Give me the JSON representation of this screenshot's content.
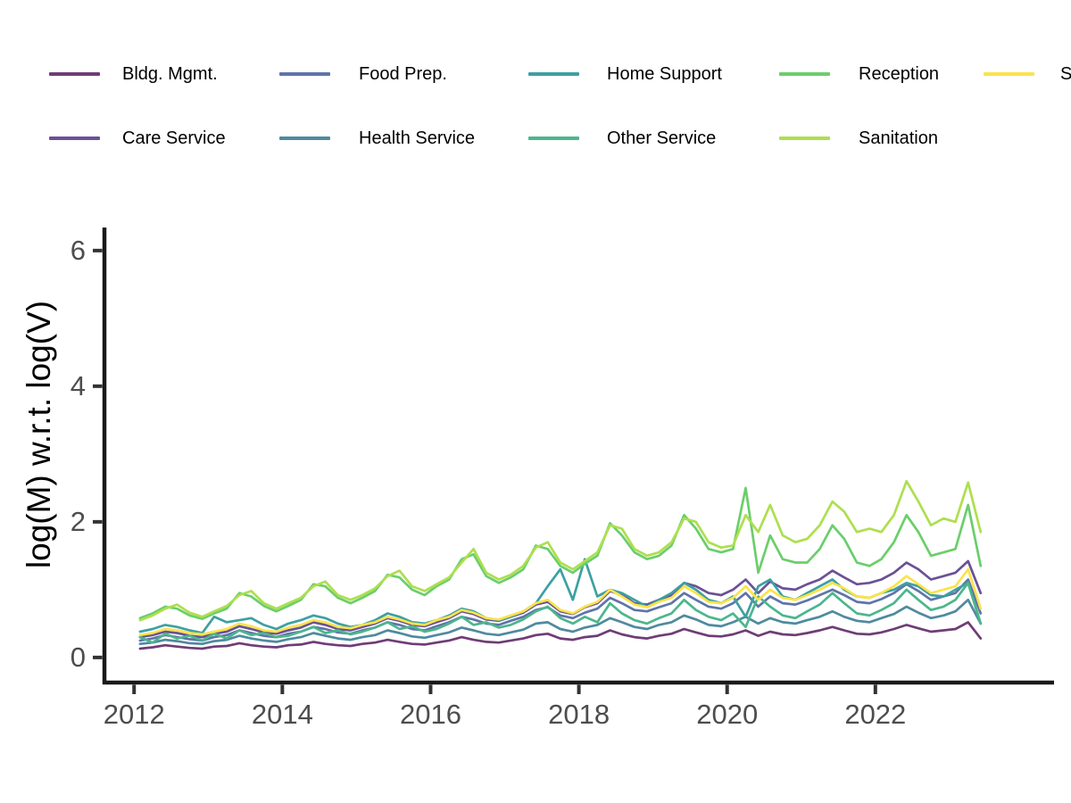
{
  "figure": {
    "background": "#ffffff"
  },
  "legend": {
    "items": [
      {
        "label": "Bldg. Mgmt.",
        "color": "#6f3c76"
      },
      {
        "label": "Care Service",
        "color": "#6a5196"
      },
      {
        "label": "Food Prep.",
        "color": "#5f74a9"
      },
      {
        "label": "Health Service",
        "color": "#4f8a9f"
      },
      {
        "label": "Home Support",
        "color": "#3da0a2"
      },
      {
        "label": "Other Service",
        "color": "#4cb68c"
      },
      {
        "label": "Reception",
        "color": "#6bce6b"
      },
      {
        "label": "Sanitation",
        "color": "#addf4f"
      },
      {
        "label": "S",
        "color": "#fbe34b"
      }
    ]
  },
  "chart_data": {
    "type": "line",
    "title": "",
    "xlabel": "",
    "ylabel": "log(M) w.r.t. log(V)",
    "xlim": [
      2011.6,
      2024.41
    ],
    "ylim": [
      -0.37,
      6.34
    ],
    "grid": false,
    "legend_position": "top",
    "axis_line_color": "#1a1a1a",
    "tick_mark_color": "#333333",
    "tick_label_color": "#4d4d4d",
    "x_ticks": [
      2012,
      2014,
      2016,
      2018,
      2020,
      2022
    ],
    "y_ticks": [
      0,
      2,
      4,
      6
    ],
    "x": [
      2012.08,
      2012.25,
      2012.42,
      2012.58,
      2012.75,
      2012.92,
      2013.08,
      2013.25,
      2013.42,
      2013.58,
      2013.75,
      2013.92,
      2014.08,
      2014.25,
      2014.42,
      2014.58,
      2014.75,
      2014.92,
      2015.08,
      2015.25,
      2015.42,
      2015.58,
      2015.75,
      2015.92,
      2016.08,
      2016.25,
      2016.42,
      2016.58,
      2016.75,
      2016.92,
      2017.08,
      2017.25,
      2017.42,
      2017.58,
      2017.75,
      2017.92,
      2018.08,
      2018.25,
      2018.42,
      2018.58,
      2018.75,
      2018.92,
      2019.08,
      2019.25,
      2019.42,
      2019.58,
      2019.75,
      2019.92,
      2020.08,
      2020.25,
      2020.42,
      2020.58,
      2020.75,
      2020.92,
      2021.08,
      2021.25,
      2021.42,
      2021.58,
      2021.75,
      2021.92,
      2022.08,
      2022.25,
      2022.42,
      2022.58,
      2022.75,
      2022.92,
      2023.08,
      2023.25,
      2023.42
    ],
    "series": [
      {
        "name": "Bldg. Mgmt.",
        "color": "#6f3c76",
        "values": [
          0.13,
          0.15,
          0.18,
          0.16,
          0.14,
          0.13,
          0.16,
          0.17,
          0.21,
          0.18,
          0.16,
          0.15,
          0.18,
          0.19,
          0.23,
          0.2,
          0.18,
          0.17,
          0.2,
          0.22,
          0.26,
          0.23,
          0.2,
          0.19,
          0.22,
          0.25,
          0.3,
          0.26,
          0.23,
          0.22,
          0.25,
          0.28,
          0.33,
          0.35,
          0.28,
          0.26,
          0.3,
          0.32,
          0.4,
          0.34,
          0.3,
          0.28,
          0.32,
          0.35,
          0.42,
          0.37,
          0.32,
          0.31,
          0.34,
          0.4,
          0.32,
          0.38,
          0.34,
          0.33,
          0.36,
          0.4,
          0.45,
          0.4,
          0.35,
          0.34,
          0.37,
          0.42,
          0.48,
          0.43,
          0.38,
          0.4,
          0.42,
          0.52,
          0.28
        ]
      },
      {
        "name": "Care Service",
        "color": "#6a5196",
        "values": [
          0.3,
          0.33,
          0.38,
          0.36,
          0.32,
          0.3,
          0.35,
          0.38,
          0.46,
          0.42,
          0.37,
          0.35,
          0.4,
          0.44,
          0.52,
          0.48,
          0.42,
          0.4,
          0.45,
          0.5,
          0.58,
          0.54,
          0.48,
          0.46,
          0.52,
          0.58,
          0.68,
          0.64,
          0.56,
          0.54,
          0.6,
          0.66,
          0.78,
          0.82,
          0.68,
          0.64,
          0.74,
          0.8,
          0.98,
          0.92,
          0.8,
          0.78,
          0.85,
          0.92,
          1.1,
          1.05,
          0.95,
          0.92,
          1.0,
          1.15,
          0.95,
          1.12,
          1.02,
          1.0,
          1.08,
          1.15,
          1.28,
          1.18,
          1.08,
          1.1,
          1.15,
          1.25,
          1.4,
          1.3,
          1.15,
          1.2,
          1.25,
          1.42,
          0.95
        ]
      },
      {
        "name": "Food Prep.",
        "color": "#5f74a9",
        "values": [
          0.25,
          0.28,
          0.33,
          0.3,
          0.27,
          0.25,
          0.3,
          0.33,
          0.4,
          0.36,
          0.32,
          0.3,
          0.35,
          0.38,
          0.45,
          0.42,
          0.37,
          0.35,
          0.4,
          0.44,
          0.52,
          0.48,
          0.42,
          0.4,
          0.46,
          0.52,
          0.6,
          0.56,
          0.5,
          0.48,
          0.54,
          0.6,
          0.7,
          0.74,
          0.62,
          0.58,
          0.66,
          0.72,
          0.88,
          0.8,
          0.7,
          0.68,
          0.74,
          0.8,
          0.95,
          0.85,
          0.75,
          0.72,
          0.8,
          0.95,
          0.75,
          0.9,
          0.8,
          0.78,
          0.84,
          0.92,
          1.0,
          0.92,
          0.82,
          0.8,
          0.86,
          0.95,
          1.08,
          0.98,
          0.85,
          0.9,
          0.95,
          1.15,
          0.65
        ]
      },
      {
        "name": "Health Service",
        "color": "#4f8a9f",
        "values": [
          0.2,
          0.22,
          0.26,
          0.24,
          0.21,
          0.2,
          0.24,
          0.26,
          0.32,
          0.28,
          0.25,
          0.23,
          0.27,
          0.3,
          0.36,
          0.32,
          0.28,
          0.26,
          0.3,
          0.33,
          0.4,
          0.36,
          0.31,
          0.29,
          0.33,
          0.37,
          0.44,
          0.4,
          0.35,
          0.33,
          0.37,
          0.41,
          0.5,
          0.52,
          0.42,
          0.38,
          0.44,
          0.48,
          0.58,
          0.52,
          0.45,
          0.42,
          0.48,
          0.52,
          0.62,
          0.56,
          0.48,
          0.46,
          0.52,
          0.6,
          0.5,
          0.58,
          0.52,
          0.5,
          0.55,
          0.6,
          0.68,
          0.6,
          0.54,
          0.52,
          0.58,
          0.64,
          0.75,
          0.66,
          0.58,
          0.62,
          0.68,
          0.85,
          0.5
        ]
      },
      {
        "name": "Home Support",
        "color": "#3da0a2",
        "values": [
          0.38,
          0.42,
          0.48,
          0.45,
          0.4,
          0.36,
          0.6,
          0.52,
          0.55,
          0.58,
          0.48,
          0.42,
          0.5,
          0.55,
          0.62,
          0.58,
          0.5,
          0.45,
          0.48,
          0.55,
          0.65,
          0.6,
          0.52,
          0.5,
          0.55,
          0.62,
          0.72,
          0.68,
          0.58,
          0.55,
          0.6,
          0.68,
          0.8,
          1.05,
          1.3,
          0.85,
          1.45,
          0.9,
          1.0,
          0.95,
          0.85,
          0.75,
          0.85,
          0.95,
          1.1,
          1.0,
          0.85,
          0.8,
          0.9,
          0.6,
          1.05,
          1.15,
          0.9,
          0.85,
          0.95,
          1.05,
          1.15,
          1.0,
          0.9,
          0.88,
          0.95,
          1.0,
          1.1,
          1.05,
          0.92,
          0.9,
          1.0,
          1.1,
          0.5
        ]
      },
      {
        "name": "Other Service",
        "color": "#4cb68c",
        "values": [
          0.3,
          0.22,
          0.35,
          0.28,
          0.32,
          0.25,
          0.35,
          0.28,
          0.4,
          0.33,
          0.36,
          0.3,
          0.32,
          0.38,
          0.45,
          0.36,
          0.4,
          0.34,
          0.38,
          0.44,
          0.52,
          0.42,
          0.46,
          0.38,
          0.42,
          0.5,
          0.6,
          0.48,
          0.52,
          0.44,
          0.48,
          0.56,
          0.68,
          0.75,
          0.58,
          0.5,
          0.6,
          0.52,
          0.8,
          0.65,
          0.55,
          0.5,
          0.58,
          0.65,
          0.85,
          0.7,
          0.6,
          0.55,
          0.65,
          0.45,
          0.9,
          0.75,
          0.62,
          0.58,
          0.68,
          0.78,
          0.95,
          0.8,
          0.65,
          0.62,
          0.7,
          0.8,
          1.0,
          0.85,
          0.7,
          0.75,
          0.85,
          1.1,
          0.5
        ]
      },
      {
        "name": "Reception",
        "color": "#6bce6b",
        "values": [
          0.58,
          0.65,
          0.75,
          0.72,
          0.62,
          0.57,
          0.65,
          0.72,
          0.95,
          0.9,
          0.76,
          0.68,
          0.76,
          0.85,
          1.08,
          1.05,
          0.88,
          0.8,
          0.88,
          0.98,
          1.22,
          1.18,
          1.0,
          0.92,
          1.05,
          1.15,
          1.45,
          1.52,
          1.2,
          1.1,
          1.18,
          1.3,
          1.65,
          1.6,
          1.35,
          1.25,
          1.38,
          1.5,
          1.98,
          1.8,
          1.55,
          1.45,
          1.5,
          1.65,
          2.1,
          1.9,
          1.6,
          1.55,
          1.6,
          2.5,
          1.25,
          1.8,
          1.45,
          1.4,
          1.4,
          1.6,
          1.95,
          1.75,
          1.4,
          1.35,
          1.45,
          1.7,
          2.1,
          1.85,
          1.5,
          1.55,
          1.6,
          2.25,
          1.35
        ]
      },
      {
        "name": "Sanitation",
        "color": "#addf4f",
        "values": [
          0.55,
          0.62,
          0.72,
          0.78,
          0.66,
          0.6,
          0.68,
          0.76,
          0.92,
          0.98,
          0.8,
          0.72,
          0.8,
          0.88,
          1.05,
          1.12,
          0.92,
          0.85,
          0.92,
          1.02,
          1.2,
          1.28,
          1.05,
          0.98,
          1.08,
          1.18,
          1.4,
          1.6,
          1.25,
          1.15,
          1.22,
          1.35,
          1.62,
          1.7,
          1.4,
          1.3,
          1.42,
          1.55,
          1.95,
          1.9,
          1.6,
          1.5,
          1.55,
          1.7,
          2.05,
          2.0,
          1.7,
          1.62,
          1.65,
          2.1,
          1.85,
          2.25,
          1.8,
          1.7,
          1.75,
          1.95,
          2.3,
          2.15,
          1.85,
          1.9,
          1.85,
          2.1,
          2.6,
          2.3,
          1.95,
          2.05,
          2.0,
          2.58,
          1.85
        ]
      },
      {
        "name": "S",
        "color": "#fbe34b",
        "values": [
          0.33,
          0.36,
          0.42,
          0.4,
          0.36,
          0.34,
          0.38,
          0.42,
          0.5,
          0.46,
          0.4,
          0.38,
          0.44,
          0.48,
          0.55,
          0.52,
          0.45,
          0.43,
          0.48,
          0.52,
          0.6,
          0.56,
          0.5,
          0.48,
          0.55,
          0.6,
          0.7,
          0.66,
          0.58,
          0.56,
          0.62,
          0.68,
          0.8,
          0.85,
          0.7,
          0.65,
          0.75,
          0.82,
          1.0,
          0.9,
          0.78,
          0.74,
          0.82,
          0.88,
          1.05,
          0.95,
          0.82,
          0.8,
          0.88,
          1.05,
          0.85,
          1.0,
          0.88,
          0.85,
          0.92,
          1.0,
          1.1,
          1.02,
          0.9,
          0.88,
          0.95,
          1.05,
          1.2,
          1.08,
          0.95,
          1.0,
          1.05,
          1.3,
          0.72
        ]
      }
    ]
  }
}
